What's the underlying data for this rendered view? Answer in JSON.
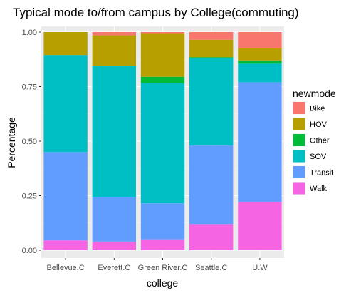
{
  "chart_data": {
    "type": "bar",
    "stacked": "percent",
    "title": "Typical mode to/from campus by College(commuting)",
    "xlabel": "college",
    "ylabel": "Percentage",
    "ylim": [
      0,
      1
    ],
    "yticks": [
      0.0,
      0.25,
      0.5,
      0.75,
      1.0
    ],
    "ytick_labels": [
      "0.00",
      "0.25",
      "0.50",
      "0.75",
      "1.00"
    ],
    "grid": true,
    "legend_position": "right",
    "legend_title": "newmode",
    "categories": [
      "Bellevue.C",
      "Everett.C",
      "Green River.C",
      "Seattle.C",
      "U.W"
    ],
    "series": [
      {
        "name": "Bike",
        "color": "#F8766D",
        "values": [
          0.0,
          0.015,
          0.005,
          0.035,
          0.075
        ]
      },
      {
        "name": "HOV",
        "color": "#B79F00",
        "values": [
          0.105,
          0.14,
          0.2,
          0.08,
          0.055
        ]
      },
      {
        "name": "Other",
        "color": "#00BA38",
        "values": [
          0.0,
          0.0,
          0.03,
          0.005,
          0.015
        ]
      },
      {
        "name": "SOV",
        "color": "#00BFC4",
        "values": [
          0.445,
          0.6,
          0.55,
          0.4,
          0.085
        ]
      },
      {
        "name": "Transit",
        "color": "#619CFF",
        "values": [
          0.405,
          0.205,
          0.165,
          0.36,
          0.55
        ]
      },
      {
        "name": "Walk",
        "color": "#F564E3",
        "values": [
          0.045,
          0.04,
          0.05,
          0.12,
          0.22
        ]
      }
    ]
  }
}
